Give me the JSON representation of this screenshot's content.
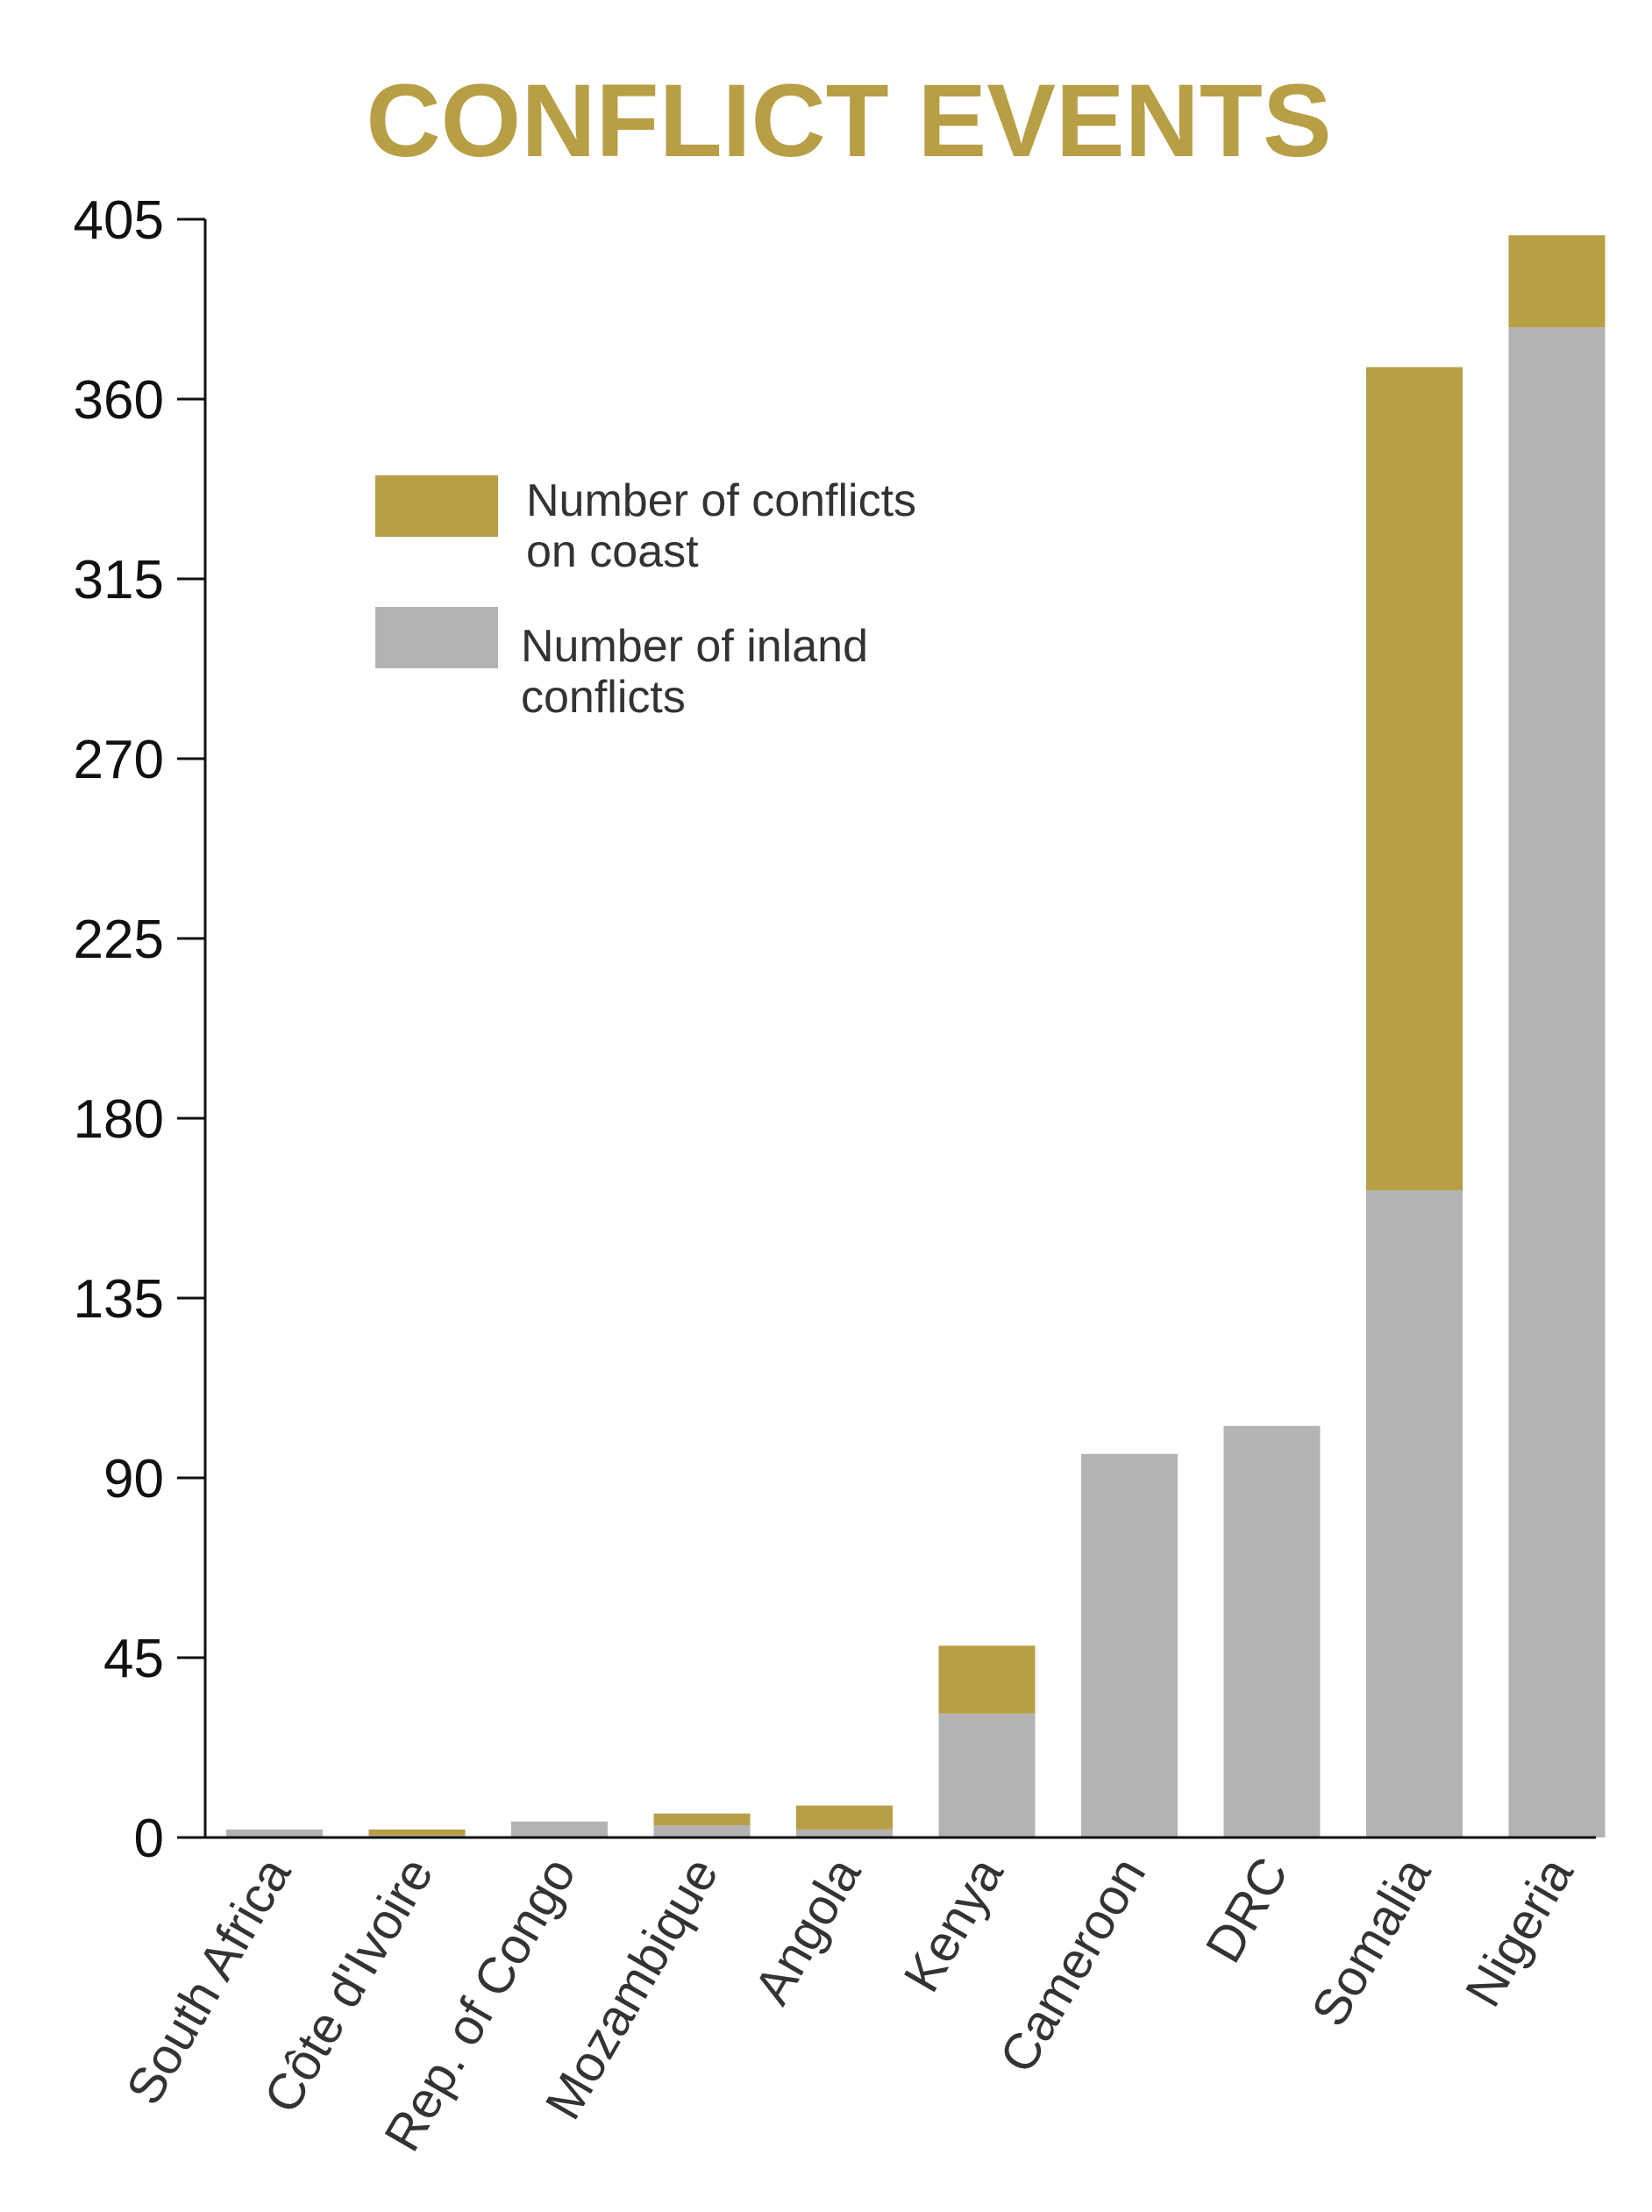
{
  "chart_data": {
    "type": "bar",
    "stacked": true,
    "title": "CONFLICT EVENTS",
    "xlabel": "",
    "ylabel": "",
    "ylim": [
      0,
      405
    ],
    "yticks": [
      0,
      45,
      90,
      135,
      180,
      225,
      270,
      315,
      360,
      405
    ],
    "categories": [
      "South Africa",
      "Côte d'Ivoire",
      "Rep. of Congo",
      "Mozambique",
      "Angola",
      "Kenya",
      "Cameroon",
      "DRC",
      "Somalia",
      "Nigeria"
    ],
    "series": [
      {
        "name": "Number of inland conflicts",
        "values": [
          2,
          0.5,
          4,
          3,
          2,
          31,
          96,
          103,
          162,
          378
        ]
      },
      {
        "name": "Number of conflicts on coast",
        "values": [
          0,
          1.5,
          0,
          3,
          6,
          17,
          0,
          0,
          206,
          23
        ]
      }
    ],
    "legend": {
      "position": "top-left",
      "entries": [
        {
          "lines": [
            "Number of conflicts",
            "on coast"
          ]
        },
        {
          "lines": [
            "Number of inland",
            "conflicts"
          ]
        }
      ]
    }
  },
  "colors": {
    "coast": "#b89e45",
    "inland": "#b3b3b3",
    "title": "#b89e45",
    "axis": "#111111"
  }
}
